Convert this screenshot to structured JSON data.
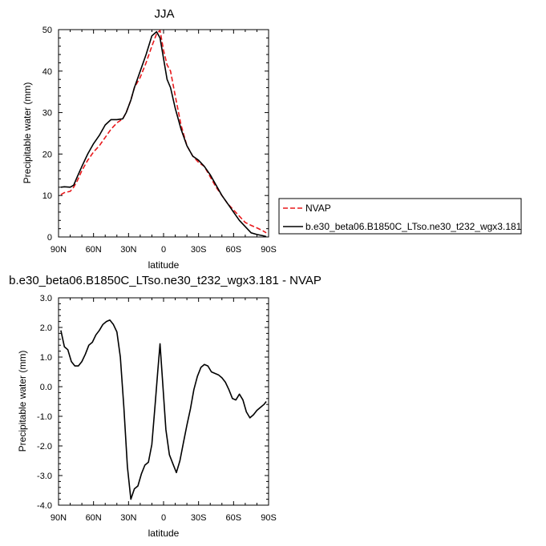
{
  "chart_data": [
    {
      "type": "line",
      "title": "JJA",
      "xlabel": "latitude",
      "ylabel": "Precipitable water (mm)",
      "x_tick_labels": [
        "90N",
        "60N",
        "30N",
        "0",
        "30S",
        "60S",
        "90S"
      ],
      "x_tick_values": [
        90,
        60,
        30,
        0,
        -30,
        -60,
        -90
      ],
      "xlim": [
        90,
        -90
      ],
      "ylim": [
        0,
        50
      ],
      "y_tick_labels": [
        "0",
        "10",
        "20",
        "30",
        "40",
        "50"
      ],
      "y_tick_values": [
        0,
        10,
        20,
        30,
        40,
        50
      ],
      "legend_position": "right",
      "series": [
        {
          "name": "NVAP",
          "color": "#e8191c",
          "dash": "dashed",
          "x": [
            88,
            85,
            80,
            77,
            74,
            70,
            65,
            60,
            55,
            50,
            45,
            40,
            35,
            32,
            28,
            25,
            20,
            15,
            10,
            6,
            3,
            0,
            -3,
            -6,
            -10,
            -15,
            -20,
            -25,
            -30,
            -35,
            -40,
            -45,
            -50,
            -55,
            -60,
            -65,
            -70,
            -75,
            -80,
            -85,
            -88
          ],
          "y": [
            10.2,
            10.7,
            11,
            12,
            13.5,
            16,
            18.5,
            20.5,
            22,
            24,
            26,
            27.5,
            28.5,
            30,
            33,
            36,
            38.5,
            42,
            46,
            49,
            49.8,
            45,
            41.5,
            40,
            34,
            27,
            22,
            19.5,
            18,
            17,
            14.5,
            12,
            10,
            8,
            6.5,
            5,
            3.5,
            2.8,
            2.2,
            1.5,
            1
          ]
        },
        {
          "name": "b.e30_beta06.B1850C_LTso.ne30_t232_wgx3.181",
          "color": "#000000",
          "dash": "solid",
          "x": [
            88,
            85,
            80,
            77,
            74,
            70,
            65,
            60,
            55,
            50,
            45,
            40,
            35,
            32,
            28,
            25,
            20,
            15,
            10,
            6,
            3,
            0,
            -3,
            -6,
            -10,
            -15,
            -20,
            -25,
            -30,
            -35,
            -40,
            -45,
            -50,
            -55,
            -60,
            -65,
            -70,
            -75,
            -80,
            -85,
            -88
          ],
          "y": [
            12,
            12.1,
            12,
            12.5,
            14.5,
            17,
            20,
            22.5,
            24.5,
            27,
            28.3,
            28.3,
            28.5,
            30,
            33,
            36,
            40,
            44,
            48.5,
            49.5,
            48,
            43,
            38,
            36,
            31,
            26,
            22,
            19.5,
            18.5,
            17,
            15,
            12.5,
            10,
            8,
            6,
            4,
            2.5,
            1,
            0.6,
            0.3,
            0.1
          ]
        }
      ]
    },
    {
      "type": "line",
      "title": "b.e30_beta06.B1850C_LTso.ne30_t232_wgx3.181 - NVAP",
      "xlabel": "latitude",
      "ylabel": "Precipitable water (mm)",
      "x_tick_labels": [
        "90N",
        "60N",
        "30N",
        "0",
        "30S",
        "60S",
        "90S"
      ],
      "x_tick_values": [
        90,
        60,
        30,
        0,
        -30,
        -60,
        -90
      ],
      "xlim": [
        90,
        -90
      ],
      "ylim": [
        -4,
        3
      ],
      "y_tick_labels": [
        "-4.0",
        "-3.0",
        "-2.0",
        "-1.0",
        "0.0",
        "1.0",
        "2.0",
        "3.0"
      ],
      "y_tick_values": [
        -4,
        -3,
        -2,
        -1,
        0,
        1,
        2,
        3
      ],
      "series": [
        {
          "color": "#000000",
          "dash": "solid",
          "x": [
            88,
            85,
            82,
            79,
            76,
            73,
            70,
            67,
            64,
            61,
            58,
            55,
            52,
            49,
            46,
            43,
            40,
            37,
            34,
            31,
            28,
            25,
            22,
            19,
            16,
            13,
            10,
            7,
            5,
            3,
            1,
            -2,
            -5,
            -8,
            -11,
            -14,
            -17,
            -20,
            -23,
            -26,
            -29,
            -32,
            -35,
            -38,
            -41,
            -44,
            -47,
            -50,
            -53,
            -56,
            -59,
            -62,
            -65,
            -68,
            -71,
            -74,
            -77,
            -80,
            -83,
            -86,
            -88
          ],
          "y": [
            1.9,
            1.35,
            1.25,
            0.85,
            0.7,
            0.7,
            0.85,
            1.1,
            1.4,
            1.5,
            1.75,
            1.9,
            2.1,
            2.2,
            2.25,
            2.1,
            1.85,
            1,
            -0.7,
            -2.7,
            -3.8,
            -3.45,
            -3.35,
            -2.95,
            -2.65,
            -2.55,
            -1.95,
            -0.5,
            0.5,
            1.45,
            0.3,
            -1.45,
            -2.3,
            -2.6,
            -2.9,
            -2.5,
            -1.9,
            -1.3,
            -0.75,
            -0.1,
            0.35,
            0.65,
            0.75,
            0.7,
            0.5,
            0.45,
            0.4,
            0.3,
            0.15,
            -0.1,
            -0.4,
            -0.45,
            -0.25,
            -0.45,
            -0.85,
            -1.05,
            -0.95,
            -0.8,
            -0.7,
            -0.6,
            -0.5
          ]
        }
      ]
    }
  ]
}
